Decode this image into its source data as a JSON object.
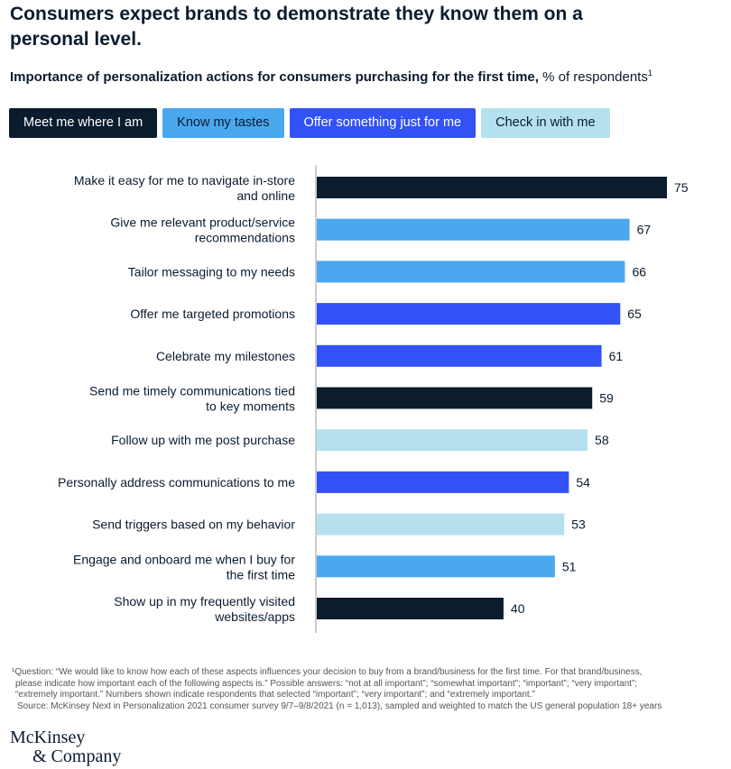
{
  "title": "Consumers expect brands to demonstrate they know them on a personal level.",
  "subtitle_bold": "Importance of personalization actions for consumers purchasing for the first time,",
  "subtitle_rest": " % of respondents",
  "subtitle_sup": "1",
  "colors": {
    "meet": "#0b1c2e",
    "know": "#4ba7ee",
    "offer": "#3352f5",
    "check": "#b5e1ee"
  },
  "legend": [
    {
      "label": "Meet me where I am",
      "key": "meet",
      "text": "#ffffff"
    },
    {
      "label": "Know my tastes",
      "key": "know",
      "text": "#0b1c2e"
    },
    {
      "label": "Offer something just for me",
      "key": "offer",
      "text": "#ffffff"
    },
    {
      "label": "Check in with me",
      "key": "check",
      "text": "#0b1c2e"
    }
  ],
  "chart_data": {
    "type": "bar",
    "orientation": "horizontal",
    "xlim": [
      0,
      75
    ],
    "grid": false,
    "categories": [
      [
        "Make it easy for me to navigate in-store",
        "and online"
      ],
      [
        "Give me relevant product/service",
        "recommendations"
      ],
      [
        "Tailor messaging to my needs"
      ],
      [
        "Offer me targeted promotions"
      ],
      [
        "Celebrate my milestones"
      ],
      [
        "Send me timely communications tied",
        "to key moments"
      ],
      [
        "Follow up with me post purchase"
      ],
      [
        "Personally address communications to me"
      ],
      [
        "Send triggers based on my behavior"
      ],
      [
        "Engage and onboard me when I buy for",
        "the first time"
      ],
      [
        "Show up in my frequently visited",
        "websites/apps"
      ]
    ],
    "values": [
      75,
      67,
      66,
      65,
      61,
      59,
      58,
      54,
      53,
      51,
      40
    ],
    "groups": [
      "meet",
      "know",
      "know",
      "offer",
      "offer",
      "meet",
      "check",
      "offer",
      "check",
      "know",
      "meet"
    ]
  },
  "footnote": [
    "¹Question: “We would like to know how each of these aspects influences your decision to buy from a brand/business for the first time. For that brand/business,",
    "please indicate how important each of the following aspects is.” Possible answers: “not at all important”; “somewhat important”; “important”; “very important”;",
    "“extremely important.” Numbers shown indicate respondents that selected “important”; “very important”; and “extremely important.”",
    "Source: McKinsey Next in Personalization 2021 consumer survey 9/7–9/8/2021 (n = 1,013), sampled and weighted to match the US general population 18+ years"
  ],
  "logo": [
    "McKinsey",
    "& Company"
  ]
}
